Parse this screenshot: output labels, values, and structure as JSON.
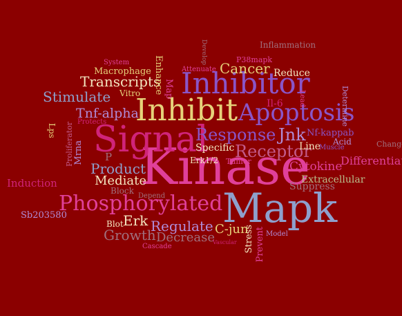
{
  "background_color": "#8b0000",
  "palette": {
    "pink": "#e0409a",
    "magenta": "#d0247a",
    "purple": "#8a55c8",
    "lavender": "#b08cd8",
    "steel": "#8ea0cc",
    "gold": "#e6d27a",
    "cream": "#f3e6c0",
    "rose": "#c25a8a",
    "sage": "#b9bf8c",
    "mauve": "#a0707e"
  },
  "words": {
    "kinase": "Kinase",
    "mapk": "Mapk",
    "signal": "Signal",
    "inhibit": "Inhibit",
    "inhibitor": "Inhibitor",
    "apoptosis": "Apoptosis",
    "phosphorylated": "Phosphorylated",
    "response": "Response",
    "receptor": "Receptor",
    "jnk": "Jnk",
    "cancer": "Cancer",
    "transcripts": "Transcripts",
    "stimulate": "Stimulate",
    "tnf_alpha": "Tnf-alpha",
    "product": "Product",
    "mediate": "Mediate",
    "regulate": "Regulate",
    "growth": "Growth",
    "decrease": "Decrease",
    "erk": "Erk",
    "c_jun": "C-jun",
    "cytokine": "Cytokine",
    "extracellular": "Extracellular",
    "suppress": "Suppress",
    "differentiation": "Differentiation",
    "induction": "Induction",
    "sb203580": "Sb203580",
    "nf_kappab": "Nf-kappab",
    "acid": "Acid",
    "muscle": "Muscle",
    "line": "Line",
    "specific": "Specific",
    "erk12": "Erk1/2",
    "tumor": "Tumor",
    "il6": "Il-6",
    "lead": "Lead",
    "reduce": "Reduce",
    "attenuate": "Attenuate",
    "p38mapk": "P38mapk",
    "develop": "Develop",
    "inflammation": "Inflammation",
    "system": "System",
    "macrophage": "Macrophage",
    "enhance": "Enhance",
    "vitro": "Vitro",
    "map": "Map",
    "protects": "Protects",
    "lps": "Lps",
    "proliferator": "Proliferator",
    "mrna": "Mrna",
    "p": "P",
    "block": "Block",
    "depend": "Depend",
    "blot": "Blot",
    "cascade": "Cascade",
    "vascular": "Vascular",
    "stress": "Stress",
    "prevent": "Prevent",
    "model": "Model",
    "determine": "Determine",
    "change": "Change"
  }
}
